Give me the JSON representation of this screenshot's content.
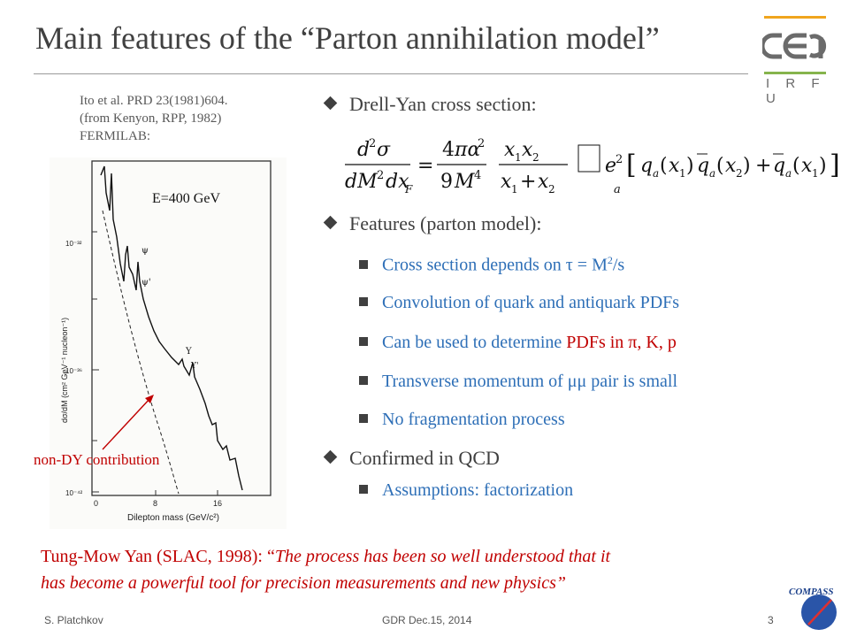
{
  "title": "Main features of the “Parton annihilation model”",
  "logo": {
    "text": "cea",
    "subtext": "I R F U"
  },
  "reference": {
    "line1": "Ito et al. PRD 23(1981)604.",
    "line2": "(from Kenyon, RPP, 1982)",
    "line3": "FERMILAB:"
  },
  "plot": {
    "energy_label": "E=400 GeV",
    "annotation": "non-DY contribution",
    "x_label": "Dilepton mass  (GeV/c²)",
    "y_label": "dσ/dM (cm² GeV⁻¹ nucleon⁻¹)",
    "x_ticks": [
      "0",
      "8",
      "16"
    ],
    "y_ticks": [
      "10⁻³²",
      "10⁻³⁶",
      "10⁻⁴²"
    ],
    "peak_labels": [
      "ψ",
      "ψ'",
      "Y",
      "Y'"
    ]
  },
  "bullets": {
    "drell_yan": "Drell-Yan cross section:",
    "features": "Features (parton model):",
    "sub": [
      "Cross section depends on τ = M",
      "Convolution of quark and antiquark PDFs",
      "Can be used to determine ",
      "Transverse momentum of μμ pair is small",
      "No fragmentation process"
    ],
    "sub1_sup": "2",
    "sub1_tail": "/s",
    "sub3_red": "PDFs in π, K, p",
    "confirmed": "Confirmed in QCD",
    "assumptions": "Assumptions: factorization"
  },
  "quote": {
    "prefix": "Tung-Mow Yan (SLAC, 1998): “",
    "line1_italic": "The process has been so well understood that it",
    "line2_italic": "has become a powerful tool for precision measurements and new physics”"
  },
  "footer": {
    "author": "S. Platchkov",
    "event": "GDR Dec.15, 2014",
    "page": "3",
    "badge": "COMPASS"
  }
}
